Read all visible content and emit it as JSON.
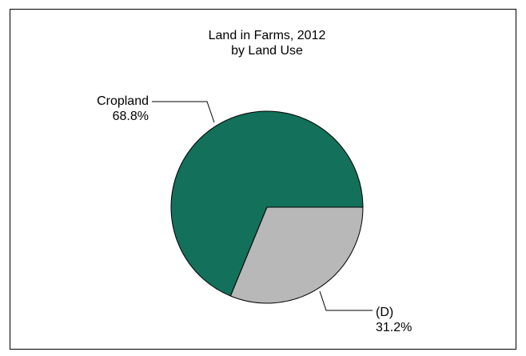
{
  "chart_data": {
    "type": "pie",
    "title": "Land in Farms, 2012",
    "subtitle": "by Land Use",
    "slices": [
      {
        "label": "Cropland",
        "value": 68.8,
        "value_label": "68.8%",
        "color": "#13705A"
      },
      {
        "label": "(D)",
        "value": 31.2,
        "value_label": "31.2%",
        "color": "#B8B8B8"
      }
    ],
    "legend": "none",
    "border": true
  }
}
